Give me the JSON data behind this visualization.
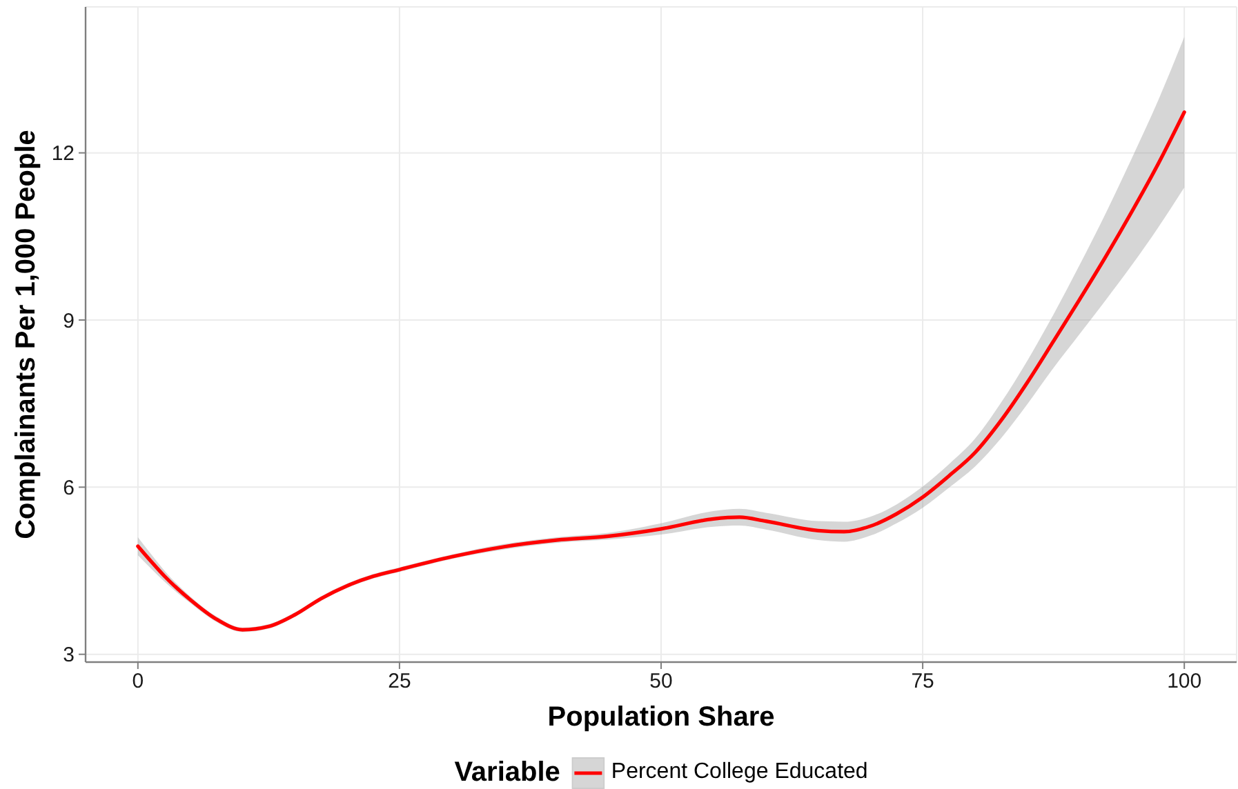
{
  "chart_data": {
    "type": "line",
    "xlabel": "Population Share",
    "ylabel": "Complainants Per 1,000 People",
    "legend_title": "Variable",
    "x": [
      0,
      1.25,
      2.5,
      5,
      7.5,
      10,
      12.5,
      15,
      17.5,
      20,
      22.5,
      25,
      30,
      35,
      40,
      45,
      50,
      55,
      57.5,
      60,
      65,
      67.5,
      70,
      72.5,
      75,
      77.5,
      80,
      82.5,
      85,
      87.5,
      90,
      92.5,
      95,
      97.5,
      100
    ],
    "series": [
      {
        "name": "Percent College Educated",
        "color": "#ff0000",
        "values": [
          4.94,
          4.67,
          4.41,
          3.98,
          3.63,
          3.44,
          3.5,
          3.71,
          4.0,
          4.23,
          4.4,
          4.52,
          4.75,
          4.93,
          5.05,
          5.12,
          5.25,
          5.43,
          5.46,
          5.39,
          5.22,
          5.2,
          5.3,
          5.52,
          5.82,
          6.2,
          6.62,
          7.2,
          7.88,
          8.62,
          9.37,
          10.14,
          10.95,
          11.8,
          12.73
        ],
        "lower": [
          4.78,
          4.54,
          4.31,
          3.92,
          3.58,
          3.4,
          3.46,
          3.67,
          3.96,
          4.19,
          4.36,
          4.48,
          4.71,
          4.88,
          5.0,
          5.06,
          5.15,
          5.29,
          5.31,
          5.24,
          5.05,
          5.02,
          5.13,
          5.35,
          5.63,
          5.99,
          6.37,
          6.88,
          7.49,
          8.14,
          8.75,
          9.36,
          9.99,
          10.66,
          11.38
        ],
        "upper": [
          5.1,
          4.8,
          4.51,
          4.04,
          3.68,
          3.48,
          3.54,
          3.75,
          4.04,
          4.27,
          4.44,
          4.56,
          4.79,
          4.98,
          5.1,
          5.18,
          5.35,
          5.57,
          5.61,
          5.54,
          5.39,
          5.38,
          5.47,
          5.69,
          6.01,
          6.41,
          6.87,
          7.52,
          8.27,
          9.1,
          9.99,
          10.92,
          11.91,
          12.94,
          14.08
        ]
      }
    ],
    "xlim": [
      -5,
      105
    ],
    "xticks": [
      0,
      25,
      50,
      75,
      100
    ],
    "ylim": [
      2.86,
      14.62
    ],
    "yticks": [
      3,
      6,
      9,
      12
    ],
    "grid": true,
    "legend": "bottom",
    "marker": "none",
    "line_style": "solid"
  }
}
